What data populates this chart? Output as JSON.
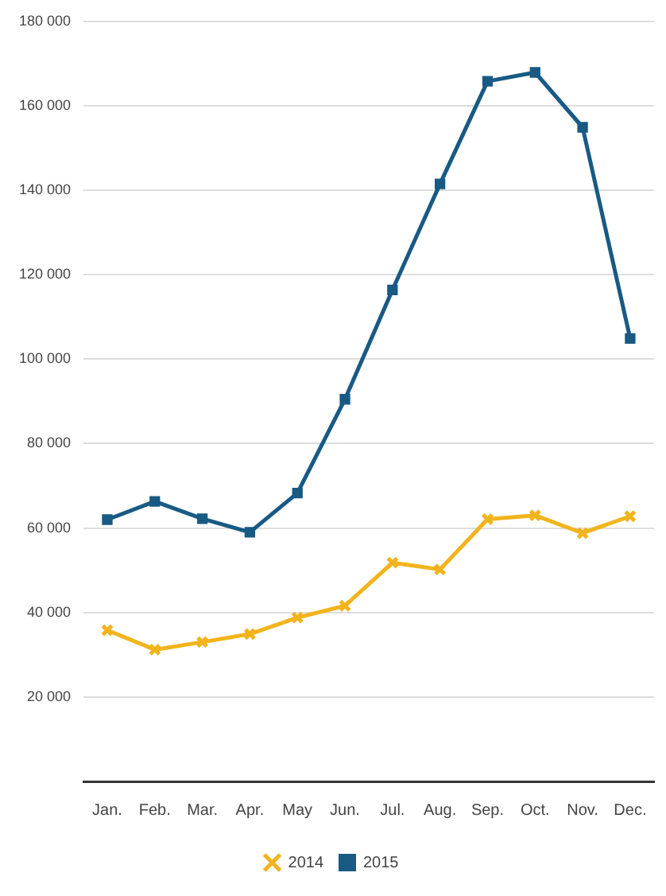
{
  "chart_data": {
    "type": "line",
    "categories": [
      "Jan.",
      "Feb.",
      "Mar.",
      "Apr.",
      "May",
      "Jun.",
      "Jul.",
      "Aug.",
      "Sep.",
      "Oct.",
      "Nov.",
      "Dec."
    ],
    "series": [
      {
        "name": "2014",
        "color": "#f2b41c",
        "marker": "cross",
        "values": [
          35800,
          31200,
          33000,
          34900,
          38800,
          41600,
          51800,
          50200,
          62100,
          63000,
          58800,
          62800
        ]
      },
      {
        "name": "2015",
        "color": "#185a84",
        "marker": "square",
        "values": [
          62000,
          66300,
          62200,
          59000,
          68300,
          90500,
          116400,
          141500,
          165800,
          167900,
          154900,
          104900
        ]
      }
    ],
    "ylim": [
      0,
      180000
    ],
    "yticks": [
      {
        "value": 0,
        "label": null
      },
      {
        "value": 20000,
        "label": "20 000"
      },
      {
        "value": 40000,
        "label": "40 000"
      },
      {
        "value": 60000,
        "label": "60 000"
      },
      {
        "value": 80000,
        "label": "80 000"
      },
      {
        "value": 100000,
        "label": "100 000"
      },
      {
        "value": 120000,
        "label": "120 000"
      },
      {
        "value": 140000,
        "label": "140 000"
      },
      {
        "value": 160000,
        "label": "160 000"
      },
      {
        "value": 180000,
        "label": "180 000"
      }
    ],
    "grid": "y",
    "legend": "bottom",
    "line_style": "solid"
  }
}
